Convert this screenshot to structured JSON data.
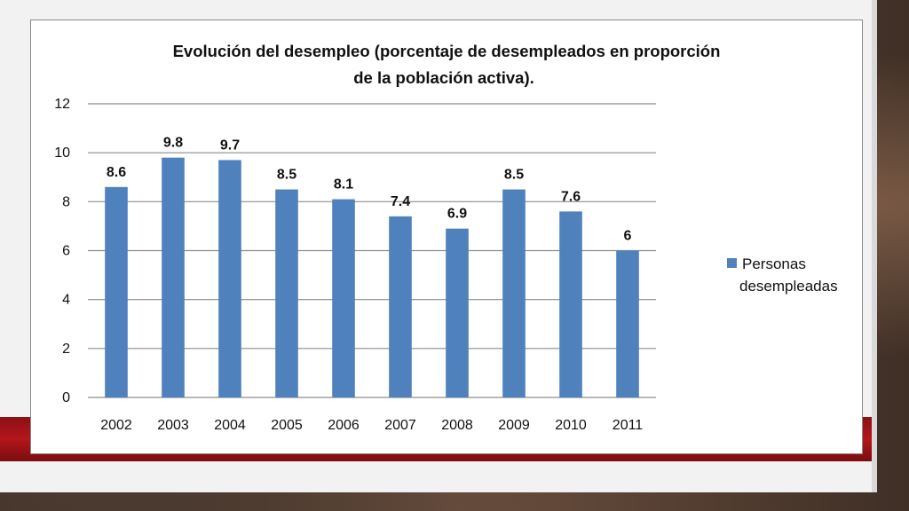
{
  "chart_data": {
    "type": "bar",
    "title_lines": [
      "Evolución del desempleo (porcentaje de desempleados en proporción",
      "de la población activa)."
    ],
    "categories": [
      "2002",
      "2003",
      "2004",
      "2005",
      "2006",
      "2007",
      "2008",
      "2009",
      "2010",
      "2011"
    ],
    "series": [
      {
        "name": "Personas desempleadas",
        "values": [
          8.6,
          9.8,
          9.7,
          8.5,
          8.1,
          7.4,
          6.9,
          8.5,
          7.6,
          6
        ]
      }
    ],
    "data_labels": [
      "8.6",
      "9.8",
      "9.7",
      "8.5",
      "8.1",
      "7.4",
      "6.9",
      "8.5",
      "7.6",
      "6"
    ],
    "y_ticks": [
      "0",
      "2",
      "4",
      "6",
      "8",
      "10",
      "12"
    ],
    "ylim": [
      0,
      12
    ],
    "grid": true,
    "legend_position": "right",
    "legend_lines": [
      "Personas",
      "desempleadas"
    ],
    "colors": {
      "bar": "#4f81bd",
      "grid": "#8c8c8c",
      "band": "#b3161b"
    }
  }
}
